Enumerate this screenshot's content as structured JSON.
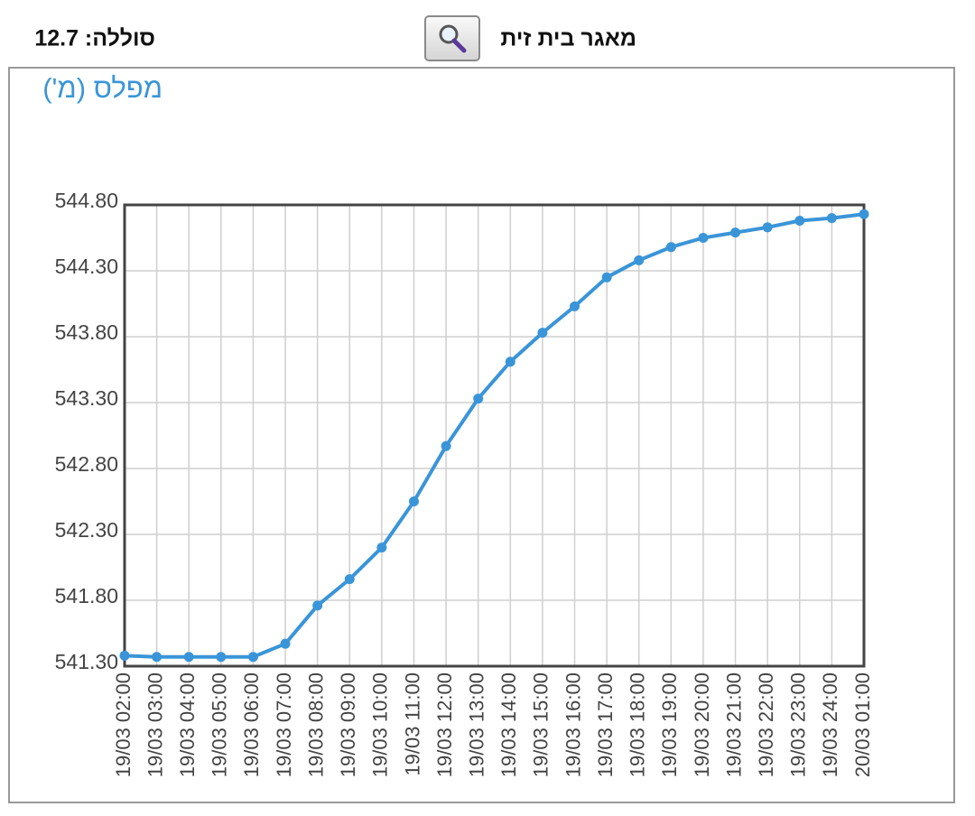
{
  "header": {
    "title": "מאגר בית זית",
    "battery": "סוללה: 12.7"
  },
  "chart_data": {
    "type": "line",
    "title": "מפלס (מ')",
    "categories": [
      "19/03 02:00",
      "19/03 03:00",
      "19/03 04:00",
      "19/03 05:00",
      "19/03 06:00",
      "19/03 07:00",
      "19/03 08:00",
      "19/03 09:00",
      "19/03 10:00",
      "19/03 11:00",
      "19/03 12:00",
      "19/03 13:00",
      "19/03 14:00",
      "19/03 15:00",
      "19/03 16:00",
      "19/03 17:00",
      "19/03 18:00",
      "19/03 19:00",
      "19/03 20:00",
      "19/03 21:00",
      "19/03 22:00",
      "19/03 23:00",
      "19/03 24:00",
      "20/03 01:00"
    ],
    "values": [
      541.38,
      541.37,
      541.37,
      541.37,
      541.37,
      541.47,
      541.76,
      541.96,
      542.2,
      542.55,
      542.97,
      543.33,
      543.61,
      543.83,
      544.03,
      544.25,
      544.38,
      544.48,
      544.55,
      544.59,
      544.63,
      544.68,
      544.7,
      544.73
    ],
    "color": "#3a95d8",
    "ylim": [
      541.3,
      544.8
    ],
    "yticks": [
      {
        "value": 541.3,
        "label": "541.30"
      },
      {
        "value": 541.8,
        "label": "541.80"
      },
      {
        "value": 542.3,
        "label": "542.30"
      },
      {
        "value": 542.8,
        "label": "542.80"
      },
      {
        "value": 543.3,
        "label": "543.30"
      },
      {
        "value": 543.8,
        "label": "543.80"
      },
      {
        "value": 544.3,
        "label": "544.30"
      },
      {
        "value": 544.8,
        "label": "544.80"
      }
    ],
    "grid": true
  }
}
